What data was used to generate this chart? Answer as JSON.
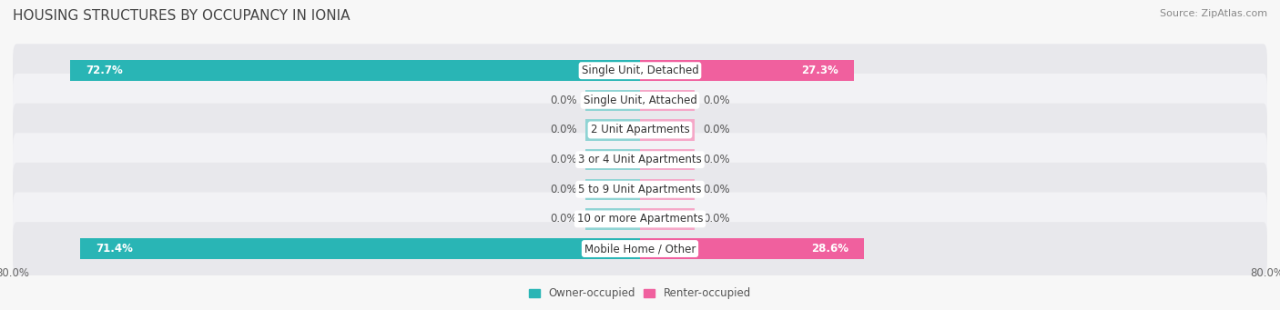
{
  "title": "HOUSING STRUCTURES BY OCCUPANCY IN IONIA",
  "source": "Source: ZipAtlas.com",
  "categories": [
    "Single Unit, Detached",
    "Single Unit, Attached",
    "2 Unit Apartments",
    "3 or 4 Unit Apartments",
    "5 to 9 Unit Apartments",
    "10 or more Apartments",
    "Mobile Home / Other"
  ],
  "owner_values": [
    72.7,
    0.0,
    0.0,
    0.0,
    0.0,
    0.0,
    71.4
  ],
  "renter_values": [
    27.3,
    0.0,
    0.0,
    0.0,
    0.0,
    0.0,
    28.6
  ],
  "owner_color": "#29b5b5",
  "renter_color": "#f0609e",
  "owner_color_zero": "#90d4d4",
  "renter_color_zero": "#f5a8c8",
  "row_bg_even": "#e8e8ec",
  "row_bg_odd": "#f2f2f5",
  "xlim_left": -80,
  "xlim_right": 80,
  "zero_bar_width": 7,
  "background_color": "#f7f7f7",
  "title_fontsize": 11,
  "bar_label_fontsize": 8.5,
  "value_fontsize": 8.5,
  "legend_fontsize": 8.5,
  "source_fontsize": 8
}
